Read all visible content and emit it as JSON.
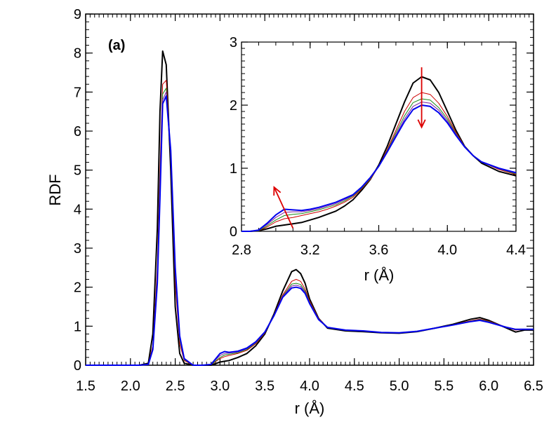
{
  "chart_data": [
    {
      "type": "line",
      "panel_label": "(a)",
      "xlabel": "r (Å)",
      "ylabel": "RDF",
      "xlim": [
        1.5,
        6.5
      ],
      "ylim": [
        0,
        9
      ],
      "xticks": [
        "1.5",
        "2.0",
        "2.5",
        "3.0",
        "3.5",
        "4.0",
        "4.5",
        "5.0",
        "5.5",
        "6.0",
        "6.5"
      ],
      "yticks": [
        "0",
        "1",
        "2",
        "3",
        "4",
        "5",
        "6",
        "7",
        "8",
        "9"
      ],
      "series": [
        {
          "name": "black",
          "color": "#000000",
          "width": 2,
          "x": [
            1.5,
            2.1,
            2.2,
            2.25,
            2.3,
            2.33,
            2.36,
            2.4,
            2.45,
            2.5,
            2.55,
            2.6,
            2.7,
            2.8,
            2.9,
            3.0,
            3.05,
            3.1,
            3.2,
            3.3,
            3.4,
            3.5,
            3.6,
            3.7,
            3.8,
            3.85,
            3.9,
            3.95,
            4.0,
            4.1,
            4.2,
            4.4,
            4.6,
            4.8,
            5.0,
            5.2,
            5.4,
            5.6,
            5.8,
            5.9,
            6.0,
            6.2,
            6.3,
            6.4,
            6.5
          ],
          "y": [
            0,
            0,
            0.05,
            0.8,
            3.5,
            6.5,
            8.05,
            7.7,
            5.0,
            1.5,
            0.3,
            0.05,
            0,
            0,
            0,
            0.08,
            0.1,
            0.12,
            0.2,
            0.3,
            0.5,
            0.8,
            1.3,
            1.9,
            2.4,
            2.45,
            2.35,
            2.1,
            1.7,
            1.2,
            0.95,
            0.88,
            0.86,
            0.83,
            0.82,
            0.86,
            0.95,
            1.05,
            1.18,
            1.22,
            1.15,
            0.95,
            0.85,
            0.9,
            0.9
          ]
        },
        {
          "name": "red",
          "color": "#cc0000",
          "width": 1,
          "x": [
            1.5,
            2.1,
            2.2,
            2.25,
            2.3,
            2.33,
            2.36,
            2.4,
            2.45,
            2.5,
            2.55,
            2.6,
            2.7,
            2.8,
            2.9,
            3.0,
            3.05,
            3.1,
            3.2,
            3.3,
            3.4,
            3.5,
            3.6,
            3.7,
            3.8,
            3.85,
            3.9,
            3.95,
            4.0,
            4.1,
            4.2,
            4.4,
            4.6,
            4.8,
            5.0,
            5.2,
            5.4,
            5.6,
            5.8,
            5.9,
            6.0,
            6.2,
            6.3,
            6.4,
            6.5
          ],
          "y": [
            0,
            0,
            0.03,
            0.5,
            2.5,
            5.0,
            7.2,
            7.3,
            5.3,
            2.1,
            0.55,
            0.12,
            0,
            0,
            0.01,
            0.17,
            0.22,
            0.25,
            0.3,
            0.38,
            0.55,
            0.82,
            1.28,
            1.8,
            2.15,
            2.2,
            2.15,
            1.95,
            1.65,
            1.2,
            0.97,
            0.9,
            0.88,
            0.84,
            0.83,
            0.87,
            0.95,
            1.04,
            1.14,
            1.18,
            1.13,
            0.97,
            0.9,
            0.92,
            0.92
          ]
        },
        {
          "name": "green",
          "color": "#1a8a1a",
          "width": 1,
          "x": [
            1.5,
            2.1,
            2.2,
            2.25,
            2.3,
            2.33,
            2.36,
            2.4,
            2.45,
            2.5,
            2.55,
            2.6,
            2.7,
            2.8,
            2.9,
            3.0,
            3.05,
            3.1,
            3.2,
            3.3,
            3.4,
            3.5,
            3.6,
            3.7,
            3.8,
            3.85,
            3.9,
            3.95,
            4.0,
            4.1,
            4.2,
            4.4,
            4.6,
            4.8,
            5.0,
            5.2,
            5.4,
            5.6,
            5.8,
            5.9,
            6.0,
            6.2,
            6.3,
            6.4,
            6.5
          ],
          "y": [
            0,
            0,
            0.03,
            0.45,
            2.3,
            4.7,
            6.95,
            7.1,
            5.4,
            2.3,
            0.65,
            0.14,
            0,
            0,
            0.01,
            0.2,
            0.26,
            0.28,
            0.32,
            0.4,
            0.57,
            0.83,
            1.27,
            1.77,
            2.08,
            2.1,
            2.07,
            1.9,
            1.62,
            1.19,
            0.97,
            0.9,
            0.88,
            0.84,
            0.83,
            0.87,
            0.95,
            1.04,
            1.13,
            1.17,
            1.12,
            0.97,
            0.91,
            0.92,
            0.92
          ]
        },
        {
          "name": "purple",
          "color": "#7a1fa2",
          "width": 1,
          "x": [
            1.5,
            2.1,
            2.2,
            2.25,
            2.3,
            2.33,
            2.36,
            2.4,
            2.45,
            2.5,
            2.55,
            2.6,
            2.7,
            2.8,
            2.9,
            3.0,
            3.05,
            3.1,
            3.2,
            3.3,
            3.4,
            3.5,
            3.6,
            3.7,
            3.8,
            3.85,
            3.9,
            3.95,
            4.0,
            4.1,
            4.2,
            4.4,
            4.6,
            4.8,
            5.0,
            5.2,
            5.4,
            5.6,
            5.8,
            5.9,
            6.0,
            6.2,
            6.3,
            6.4,
            6.5
          ],
          "y": [
            0,
            0,
            0.03,
            0.42,
            2.2,
            4.5,
            6.8,
            7.0,
            5.4,
            2.4,
            0.7,
            0.15,
            0,
            0,
            0.02,
            0.25,
            0.3,
            0.31,
            0.34,
            0.42,
            0.58,
            0.84,
            1.27,
            1.76,
            2.03,
            2.05,
            2.02,
            1.87,
            1.6,
            1.18,
            0.97,
            0.9,
            0.88,
            0.84,
            0.83,
            0.87,
            0.95,
            1.03,
            1.12,
            1.16,
            1.11,
            0.97,
            0.91,
            0.92,
            0.92
          ]
        },
        {
          "name": "blue",
          "color": "#0000ee",
          "width": 2,
          "x": [
            1.5,
            2.1,
            2.2,
            2.25,
            2.3,
            2.33,
            2.36,
            2.4,
            2.45,
            2.5,
            2.55,
            2.6,
            2.7,
            2.8,
            2.9,
            3.0,
            3.05,
            3.1,
            3.2,
            3.3,
            3.4,
            3.5,
            3.6,
            3.7,
            3.8,
            3.85,
            3.9,
            3.95,
            4.0,
            4.1,
            4.2,
            4.4,
            4.6,
            4.8,
            5.0,
            5.2,
            5.4,
            5.6,
            5.8,
            5.9,
            6.0,
            6.2,
            6.3,
            6.4,
            6.5
          ],
          "y": [
            0,
            0,
            0.02,
            0.4,
            2.1,
            4.3,
            6.7,
            6.9,
            5.5,
            2.5,
            0.75,
            0.17,
            0,
            0,
            0.02,
            0.3,
            0.35,
            0.33,
            0.36,
            0.44,
            0.6,
            0.85,
            1.26,
            1.74,
            1.98,
            2.0,
            1.97,
            1.84,
            1.58,
            1.17,
            0.97,
            0.9,
            0.88,
            0.84,
            0.83,
            0.87,
            0.95,
            1.03,
            1.12,
            1.15,
            1.1,
            0.97,
            0.92,
            0.92,
            0.92
          ]
        }
      ]
    },
    {
      "type": "line",
      "role": "inset",
      "xlabel": "r (Å)",
      "ylabel": "",
      "xlim": [
        2.8,
        4.4
      ],
      "ylim": [
        0,
        3
      ],
      "xticks": [
        "2.8",
        "3.2",
        "3.6",
        "4.0",
        "4.4"
      ],
      "yticks": [
        "0",
        "1",
        "2",
        "3"
      ],
      "arrows": [
        {
          "from": [
            3.1,
            0.05
          ],
          "to": [
            2.99,
            0.7
          ],
          "color": "#dd0000"
        },
        {
          "from": [
            3.85,
            2.6
          ],
          "to": [
            3.85,
            1.65
          ],
          "color": "#dd0000"
        }
      ],
      "series": [
        {
          "name": "black",
          "color": "#000000",
          "width": 2,
          "x": [
            2.8,
            2.85,
            2.9,
            2.95,
            3.0,
            3.05,
            3.1,
            3.15,
            3.2,
            3.25,
            3.3,
            3.35,
            3.4,
            3.45,
            3.5,
            3.55,
            3.6,
            3.65,
            3.7,
            3.75,
            3.8,
            3.85,
            3.9,
            3.95,
            4.0,
            4.05,
            4.1,
            4.15,
            4.2,
            4.3,
            4.4
          ],
          "y": [
            0,
            0,
            0.01,
            0.04,
            0.08,
            0.1,
            0.12,
            0.14,
            0.18,
            0.22,
            0.27,
            0.32,
            0.4,
            0.5,
            0.65,
            0.82,
            1.05,
            1.35,
            1.7,
            2.05,
            2.35,
            2.45,
            2.4,
            2.2,
            1.9,
            1.6,
            1.35,
            1.2,
            1.08,
            0.95,
            0.88
          ]
        },
        {
          "name": "red",
          "color": "#cc0000",
          "width": 1,
          "x": [
            2.8,
            2.85,
            2.9,
            2.95,
            3.0,
            3.05,
            3.1,
            3.15,
            3.2,
            3.25,
            3.3,
            3.35,
            3.4,
            3.45,
            3.5,
            3.55,
            3.6,
            3.65,
            3.7,
            3.75,
            3.8,
            3.85,
            3.9,
            3.95,
            4.0,
            4.05,
            4.1,
            4.15,
            4.2,
            4.3,
            4.4
          ],
          "y": [
            0,
            0,
            0.01,
            0.07,
            0.15,
            0.2,
            0.22,
            0.25,
            0.28,
            0.31,
            0.35,
            0.4,
            0.46,
            0.54,
            0.67,
            0.82,
            1.03,
            1.3,
            1.6,
            1.9,
            2.12,
            2.2,
            2.17,
            2.03,
            1.82,
            1.57,
            1.35,
            1.2,
            1.1,
            0.98,
            0.9
          ]
        },
        {
          "name": "green",
          "color": "#1a8a1a",
          "width": 1,
          "x": [
            2.8,
            2.85,
            2.9,
            2.95,
            3.0,
            3.05,
            3.1,
            3.15,
            3.2,
            3.25,
            3.3,
            3.35,
            3.4,
            3.45,
            3.5,
            3.55,
            3.6,
            3.65,
            3.7,
            3.75,
            3.8,
            3.85,
            3.9,
            3.95,
            4.0,
            4.05,
            4.1,
            4.15,
            4.2,
            4.3,
            4.4
          ],
          "y": [
            0,
            0,
            0.01,
            0.09,
            0.18,
            0.25,
            0.27,
            0.28,
            0.31,
            0.34,
            0.38,
            0.42,
            0.48,
            0.56,
            0.68,
            0.83,
            1.03,
            1.28,
            1.56,
            1.83,
            2.04,
            2.1,
            2.08,
            1.96,
            1.78,
            1.55,
            1.35,
            1.2,
            1.1,
            0.99,
            0.91
          ]
        },
        {
          "name": "purple",
          "color": "#7a1fa2",
          "width": 1,
          "x": [
            2.8,
            2.85,
            2.9,
            2.95,
            3.0,
            3.05,
            3.1,
            3.15,
            3.2,
            3.25,
            3.3,
            3.35,
            3.4,
            3.45,
            3.5,
            3.55,
            3.6,
            3.65,
            3.7,
            3.75,
            3.8,
            3.85,
            3.9,
            3.95,
            4.0,
            4.05,
            4.1,
            4.15,
            4.2,
            4.3,
            4.4
          ],
          "y": [
            0,
            0,
            0.02,
            0.11,
            0.22,
            0.3,
            0.31,
            0.31,
            0.33,
            0.36,
            0.4,
            0.44,
            0.5,
            0.57,
            0.69,
            0.84,
            1.03,
            1.27,
            1.53,
            1.78,
            1.98,
            2.05,
            2.03,
            1.92,
            1.75,
            1.54,
            1.35,
            1.2,
            1.1,
            0.99,
            0.92
          ]
        },
        {
          "name": "blue",
          "color": "#0000ee",
          "width": 2,
          "x": [
            2.8,
            2.85,
            2.9,
            2.95,
            3.0,
            3.05,
            3.1,
            3.15,
            3.2,
            3.25,
            3.3,
            3.35,
            3.4,
            3.45,
            3.5,
            3.55,
            3.6,
            3.65,
            3.7,
            3.75,
            3.8,
            3.85,
            3.9,
            3.95,
            4.0,
            4.05,
            4.1,
            4.15,
            4.2,
            4.3,
            4.4
          ],
          "y": [
            0,
            0,
            0.02,
            0.13,
            0.26,
            0.35,
            0.34,
            0.33,
            0.35,
            0.38,
            0.42,
            0.46,
            0.52,
            0.58,
            0.7,
            0.85,
            1.03,
            1.26,
            1.5,
            1.74,
            1.93,
            2.0,
            1.98,
            1.88,
            1.72,
            1.52,
            1.34,
            1.2,
            1.1,
            1.0,
            0.93
          ]
        }
      ]
    }
  ]
}
